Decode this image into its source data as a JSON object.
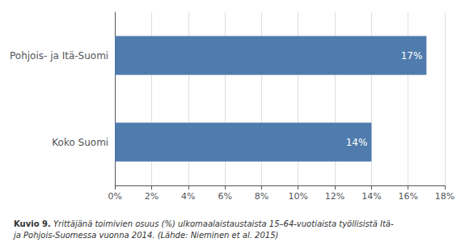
{
  "chart_data": {
    "type": "bar",
    "orientation": "horizontal",
    "categories": [
      "Koko Suomi",
      "Pohjois- ja Itä-Suomi"
    ],
    "values": [
      14,
      17
    ],
    "value_labels": [
      "14%",
      "17%"
    ],
    "data_labels": true,
    "color": "#4F7BAD",
    "xlim": [
      0,
      18
    ],
    "xticks": [
      {
        "value": 0,
        "label": "0%"
      },
      {
        "value": 2,
        "label": "2%"
      },
      {
        "value": 4,
        "label": "4%"
      },
      {
        "value": 6,
        "label": "6%"
      },
      {
        "value": 8,
        "label": "8%"
      },
      {
        "value": 10,
        "label": "10%"
      },
      {
        "value": 12,
        "label": "12%"
      },
      {
        "value": 14,
        "label": "14%"
      },
      {
        "value": 16,
        "label": "16%"
      },
      {
        "value": 18,
        "label": "18%"
      }
    ],
    "grid": true,
    "annotations": [
      "Kuvio 9.",
      "Yrittäjänä toimivien osuus (%) ulkomaalaistaustaista 15–64-vuotiaista työllisistä Itä-\nja Pohjois-Suomessa vuonna 2014. (Lähde: Nieminen et al. 2015)"
    ]
  }
}
